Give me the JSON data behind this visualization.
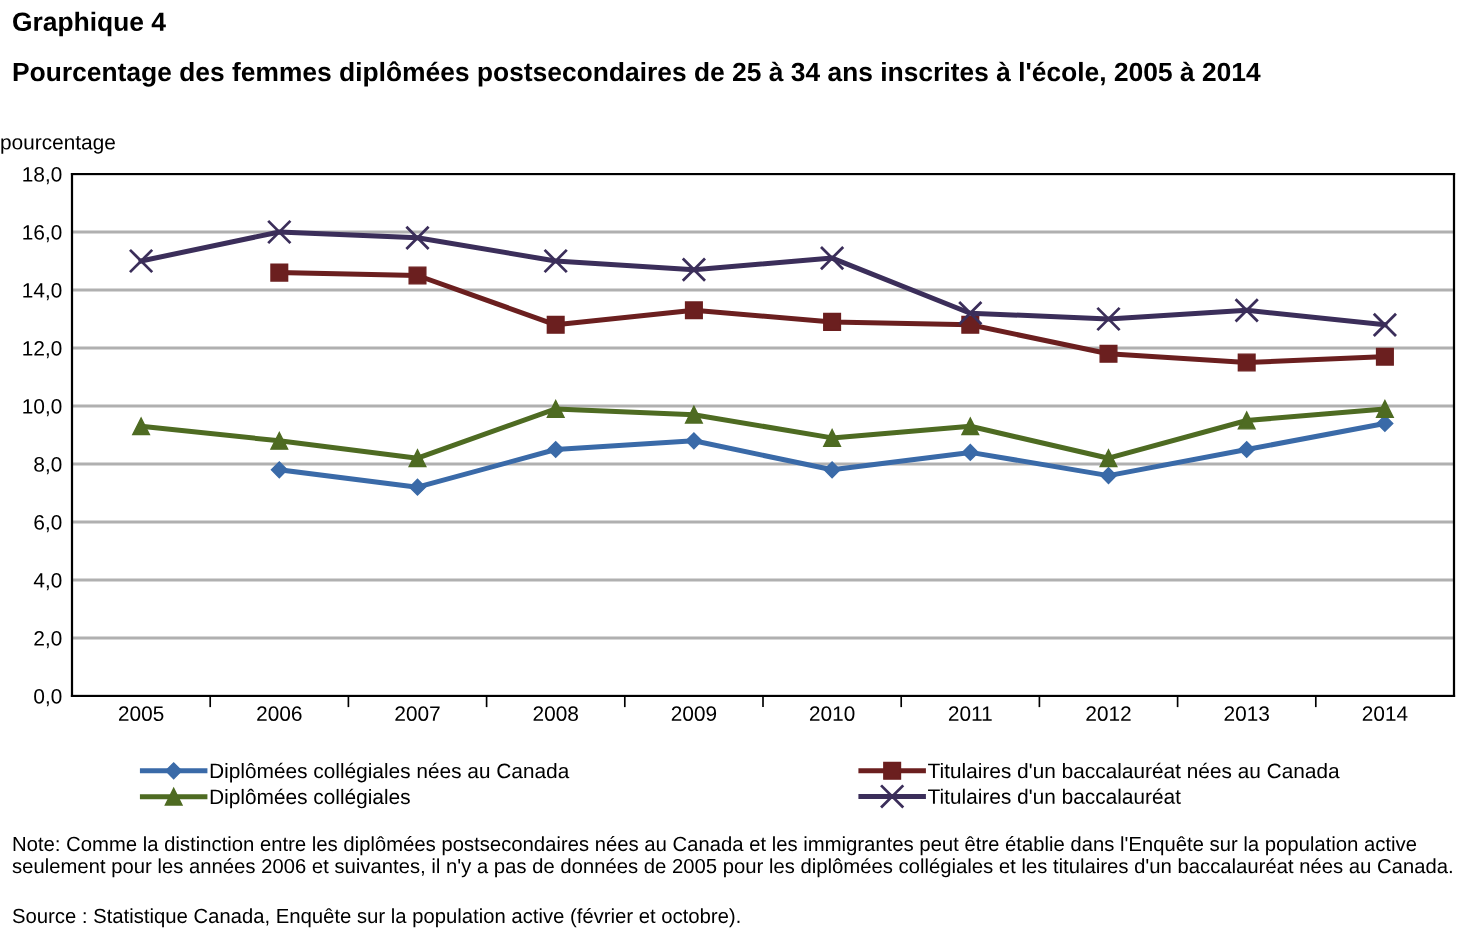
{
  "chart_data": {
    "type": "line",
    "title": "Graphique 4",
    "subtitle": "Pourcentage des femmes diplômées postsecondaires de 25 à 34 ans inscrites à l'école, 2005 à 2014",
    "ylabel": "pourcentage",
    "categories": [
      "2005",
      "2006",
      "2007",
      "2008",
      "2009",
      "2010",
      "2011",
      "2012",
      "2013",
      "2014"
    ],
    "series": [
      {
        "name": "Diplômées collégiales nées au Canada",
        "color": "#3a6aa8",
        "marker": "diamond",
        "values": [
          null,
          7.8,
          7.2,
          8.5,
          8.8,
          7.8,
          8.4,
          7.6,
          8.5,
          9.4
        ]
      },
      {
        "name": "Titulaires d'un baccalauréat nées au Canada",
        "color": "#6b1f1f",
        "marker": "square",
        "values": [
          null,
          14.6,
          14.5,
          12.8,
          13.3,
          12.9,
          12.8,
          11.8,
          11.5,
          11.7
        ]
      },
      {
        "name": "Diplômées collégiales",
        "color": "#4e6b22",
        "marker": "triangle",
        "values": [
          9.3,
          8.8,
          8.2,
          9.9,
          9.7,
          8.9,
          9.3,
          8.2,
          9.5,
          9.9
        ]
      },
      {
        "name": "Titulaires d'un baccalauréat",
        "color": "#3b2e5a",
        "marker": "cross",
        "values": [
          15.0,
          16.0,
          15.8,
          15.0,
          14.7,
          15.1,
          13.2,
          13.0,
          13.3,
          12.8
        ]
      }
    ],
    "ylim": [
      0,
      18
    ],
    "yticks": [
      {
        "value": 0,
        "label": "0,0"
      },
      {
        "value": 2,
        "label": "2,0"
      },
      {
        "value": 4,
        "label": "4,0"
      },
      {
        "value": 6,
        "label": "6,0"
      },
      {
        "value": 8,
        "label": "8,0"
      },
      {
        "value": 10,
        "label": "10,0"
      },
      {
        "value": 12,
        "label": "12,0"
      },
      {
        "value": 14,
        "label": "14,0"
      },
      {
        "value": 16,
        "label": "16,0"
      },
      {
        "value": 18,
        "label": "18,0"
      }
    ],
    "grid": "y",
    "legend": "bottom",
    "line_style": "solid",
    "annotations": [
      "Note: Comme la distinction entre les diplômées postsecondaires nées au Canada et les immigrantes peut être établie dans l'Enquête sur la population active seulement pour les années 2006 et suivantes, il n'y a pas de données de 2005 pour les diplômées collégiales et les titulaires d'un baccalauréat nées au Canada.",
      "Source : Statistique Canada, Enquête sur la population active (février et octobre)."
    ]
  }
}
